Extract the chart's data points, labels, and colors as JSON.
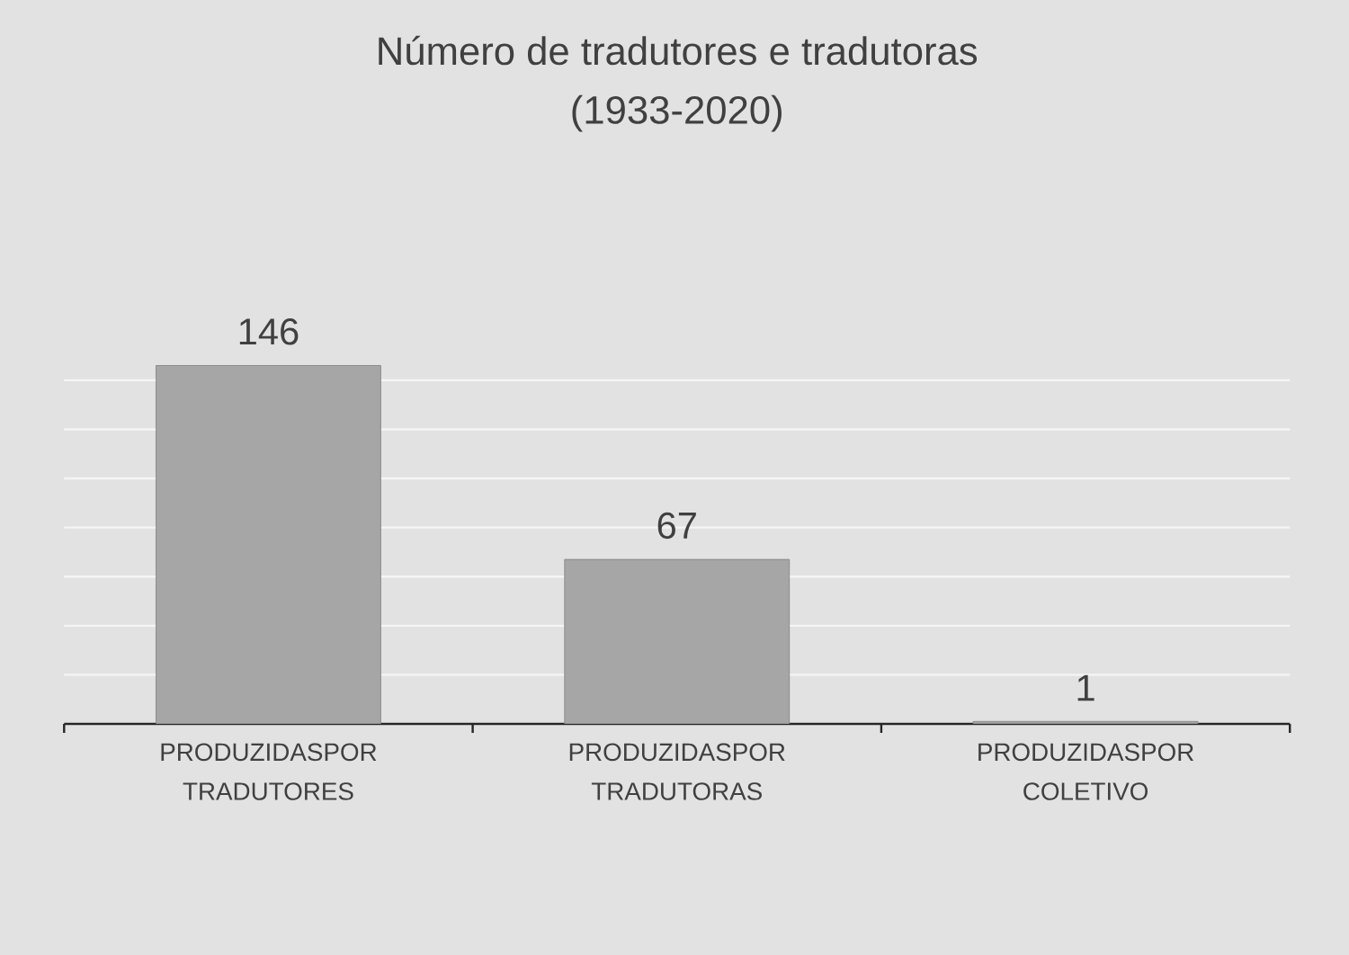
{
  "chart_data": {
    "type": "bar",
    "title": "Número de tradutores e tradutoras (1933-2020)",
    "categories": [
      "PRODUZIDASPOR TRADUTORES",
      "PRODUZIDASPOR TRADUTORAS",
      "PRODUZIDASPOR COLETIVO"
    ],
    "values": [
      146,
      67,
      1
    ],
    "color": "#a6a6a6",
    "data_labels": true,
    "grid": "y",
    "tick_labels": "x"
  }
}
